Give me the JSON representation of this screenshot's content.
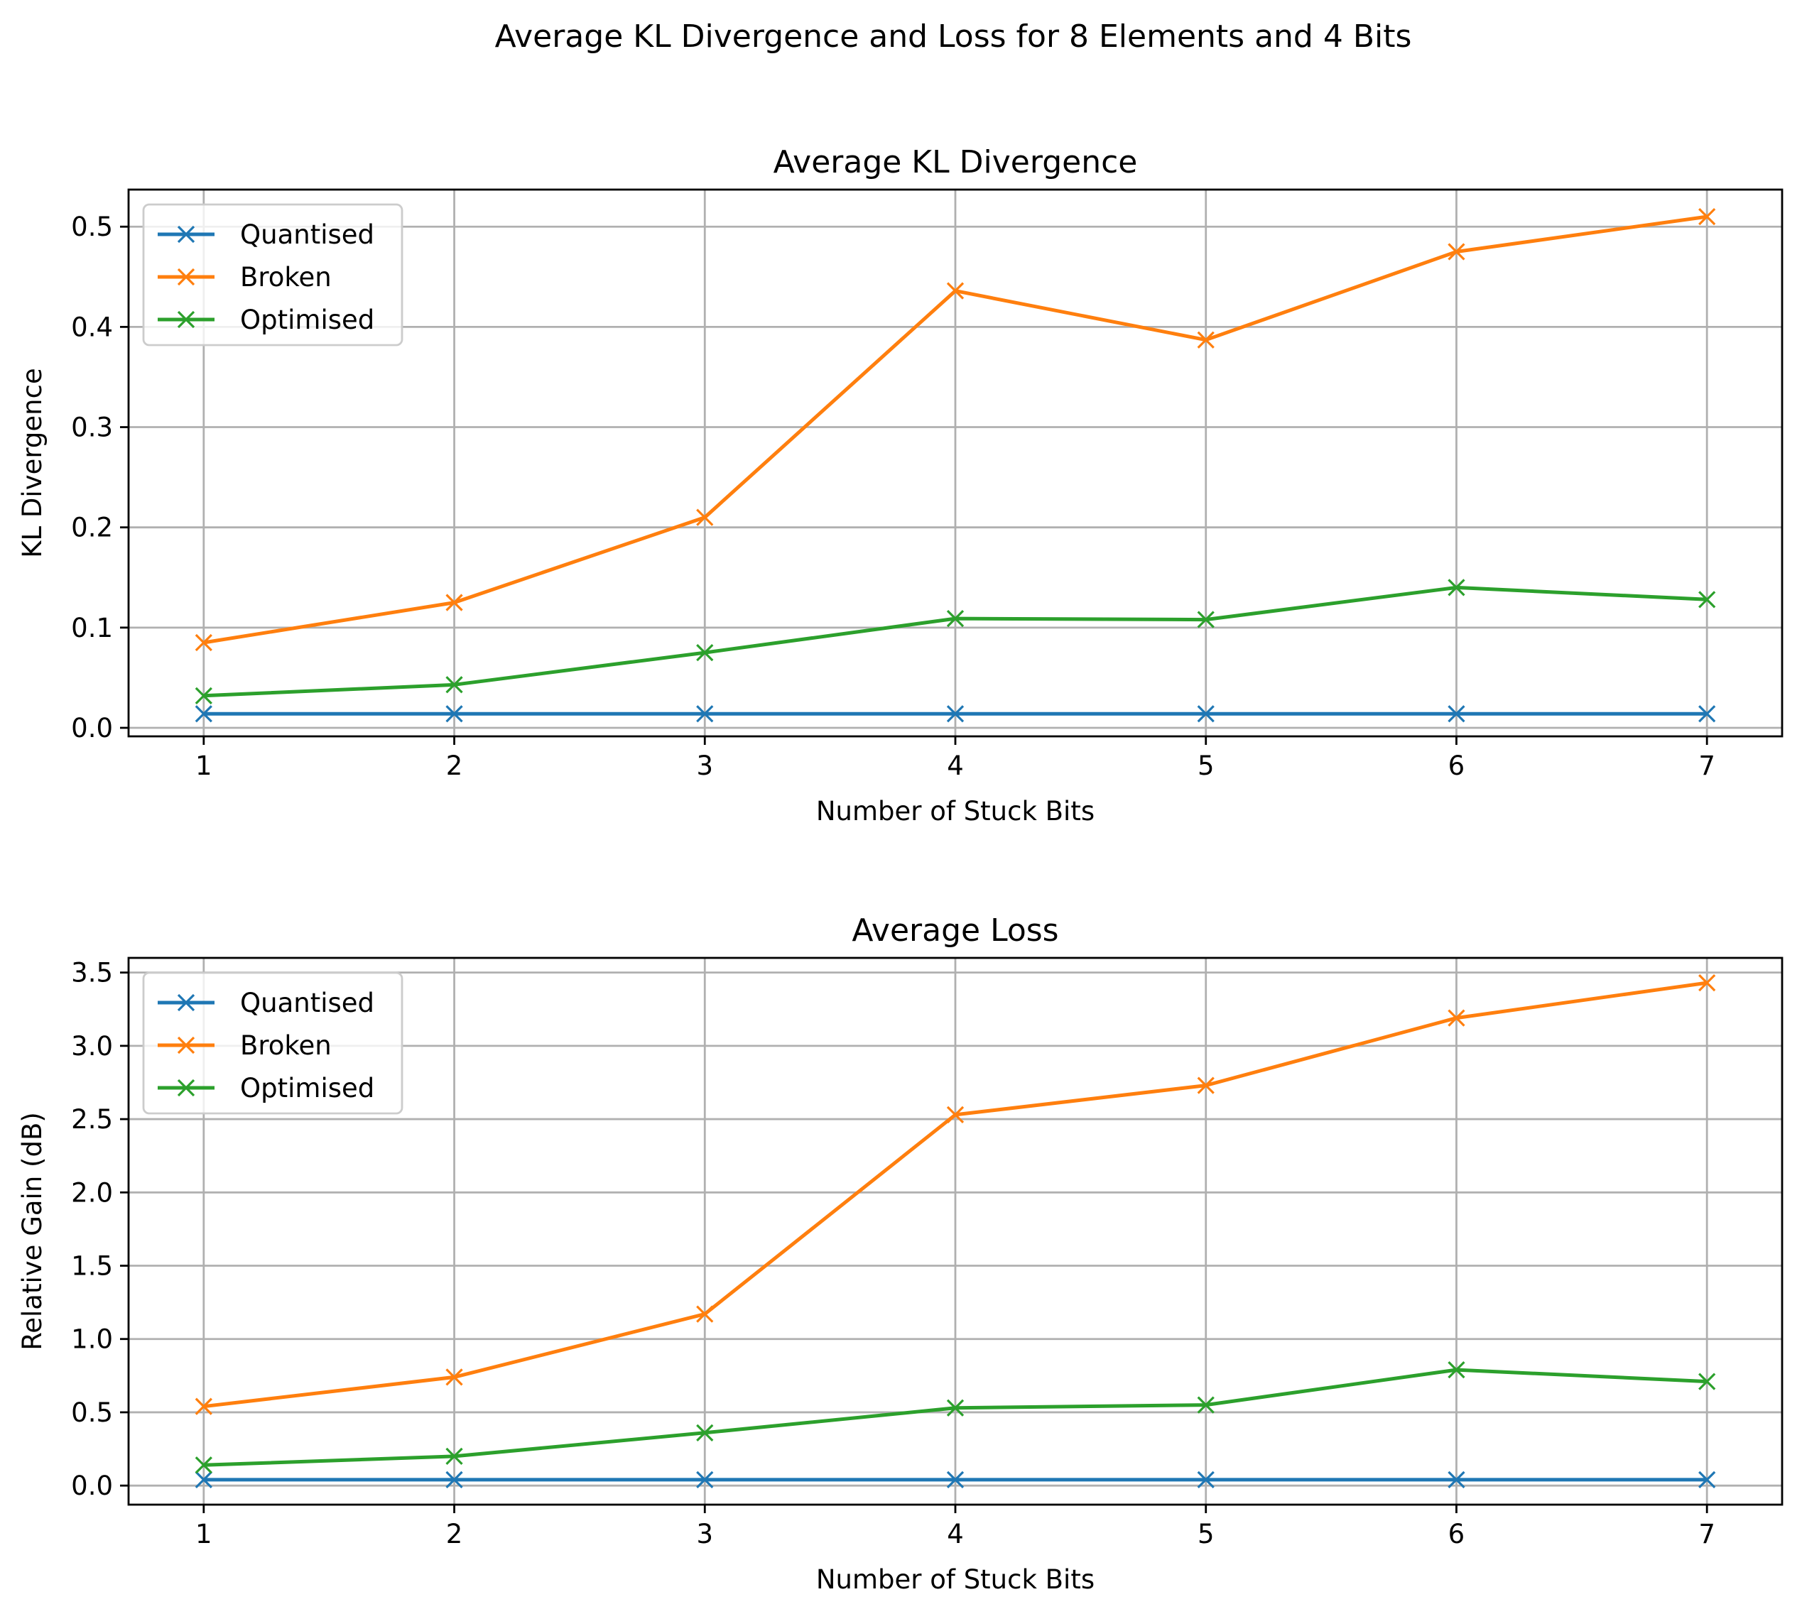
{
  "figure": {
    "suptitle": "Average KL Divergence and Loss for 8 Elements and 4 Bits"
  },
  "colors": {
    "Quantised": "#1f77b4",
    "Broken": "#ff7f0e",
    "Optimised": "#2ca02c",
    "grid": "#b0b0b0"
  },
  "chart_data": [
    {
      "type": "line",
      "title": "Average KL Divergence",
      "xlabel": "Number of Stuck Bits",
      "ylabel": "KL Divergence",
      "x": [
        1,
        2,
        3,
        4,
        5,
        6,
        7
      ],
      "xlim": [
        0.7,
        7.3
      ],
      "ylim": [
        -0.0085,
        0.537
      ],
      "xticks": [
        "1",
        "2",
        "3",
        "4",
        "5",
        "6",
        "7"
      ],
      "yticks": [
        "0.0",
        "0.1",
        "0.2",
        "0.3",
        "0.4",
        "0.5"
      ],
      "grid": true,
      "marker": "x",
      "legend_position": "upper left",
      "series": [
        {
          "name": "Quantised",
          "values": [
            0.014,
            0.014,
            0.014,
            0.014,
            0.014,
            0.014,
            0.014
          ]
        },
        {
          "name": "Broken",
          "values": [
            0.085,
            0.125,
            0.21,
            0.436,
            0.387,
            0.475,
            0.51
          ]
        },
        {
          "name": "Optimised",
          "values": [
            0.032,
            0.043,
            0.075,
            0.109,
            0.108,
            0.14,
            0.128
          ]
        }
      ]
    },
    {
      "type": "line",
      "title": "Average Loss",
      "xlabel": "Number of Stuck Bits",
      "ylabel": "Relative Gain (dB)",
      "x": [
        1,
        2,
        3,
        4,
        5,
        6,
        7
      ],
      "xlim": [
        0.7,
        7.3
      ],
      "ylim": [
        -0.13,
        3.6
      ],
      "xticks": [
        "1",
        "2",
        "3",
        "4",
        "5",
        "6",
        "7"
      ],
      "yticks": [
        "0.0",
        "0.5",
        "1.0",
        "1.5",
        "2.0",
        "2.5",
        "3.0",
        "3.5"
      ],
      "grid": true,
      "marker": "x",
      "legend_position": "upper left",
      "series": [
        {
          "name": "Quantised",
          "values": [
            0.04,
            0.04,
            0.04,
            0.04,
            0.04,
            0.04,
            0.04
          ]
        },
        {
          "name": "Broken",
          "values": [
            0.54,
            0.74,
            1.17,
            2.53,
            2.73,
            3.19,
            3.43
          ]
        },
        {
          "name": "Optimised",
          "values": [
            0.14,
            0.2,
            0.36,
            0.53,
            0.55,
            0.79,
            0.71
          ]
        }
      ]
    }
  ]
}
